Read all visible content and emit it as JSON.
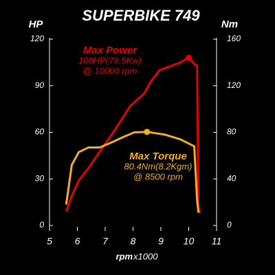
{
  "chart_data": {
    "type": "line",
    "title": "SUPERBIKE 749",
    "ylabel": "HP",
    "y2label": "Nm",
    "xlabel": "rpm",
    "xlabel_unit": "x1000",
    "xlim": [
      5,
      11
    ],
    "xticks": [
      5,
      6,
      7,
      8,
      9,
      10,
      11
    ],
    "ylim": [
      0,
      120
    ],
    "yticks": [
      0,
      30,
      60,
      90,
      120
    ],
    "y2lim": [
      0,
      160
    ],
    "y2ticks": [
      0,
      40,
      80,
      120,
      160
    ],
    "series": [
      {
        "name": "Max Power",
        "color": "#e60000",
        "x": [
          5.6,
          5.8,
          6.05,
          6.4,
          6.9,
          7.4,
          7.9,
          8.4,
          8.65,
          8.95,
          9.4,
          9.7,
          9.9,
          10,
          10.2,
          10.3,
          10.35,
          10.4
        ],
        "values": [
          9,
          19,
          29,
          37,
          50,
          63,
          77,
          85,
          93,
          100,
          103,
          105,
          107,
          108,
          104,
          103,
          12,
          8
        ],
        "peak_index": 13
      },
      {
        "name": "Max Torque",
        "color": "#f2b01e",
        "axis": "y2",
        "x": [
          5.6,
          5.8,
          6.05,
          6.4,
          6.8,
          7.2,
          7.65,
          8.05,
          8.5,
          9.15,
          9.7,
          10.2,
          10.3,
          10.35
        ],
        "values": [
          18,
          52,
          63,
          67,
          67,
          71,
          76,
          80,
          80.4,
          78,
          74,
          68,
          22,
          11
        ],
        "peak_index": 8
      }
    ],
    "annotations": [
      {
        "lines": [
          "Max Power",
          "108HP(79.5Kw)",
          "@ 10000 rpm"
        ],
        "color": "#e60000"
      },
      {
        "lines": [
          "Max Torque",
          "80.4Nm(8.2Kgm)",
          "@ 8500 rpm"
        ],
        "color": "#f2b01e"
      }
    ]
  }
}
